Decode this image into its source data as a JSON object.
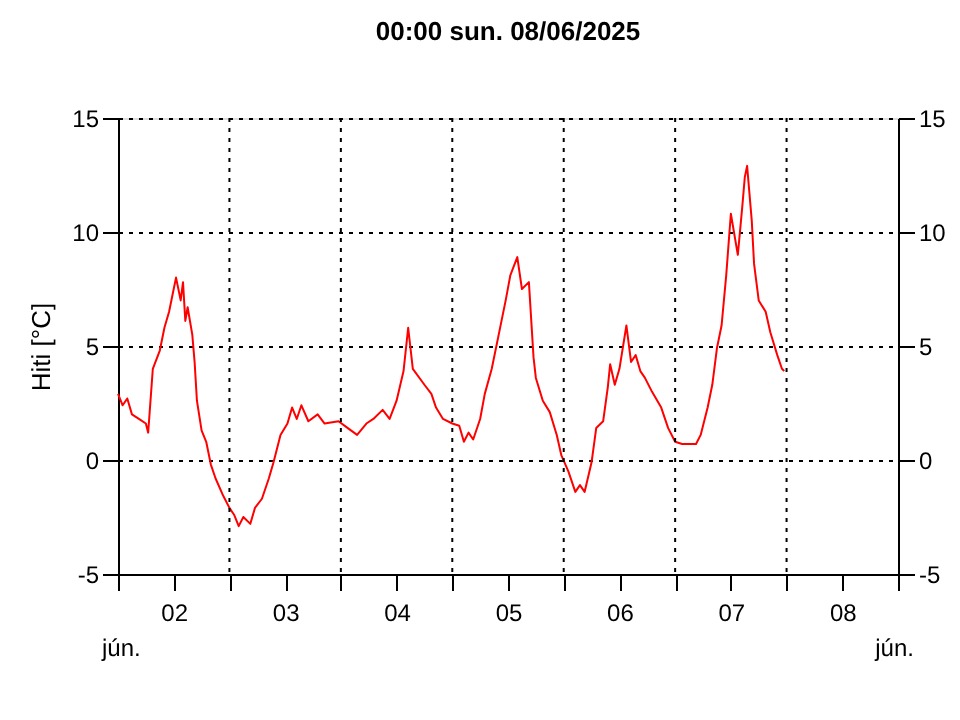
{
  "chart_data": {
    "type": "line",
    "title": "00:00   sun.  08/06/2025",
    "ylabel": "Hiti [°C]",
    "annotations": [
      "jún.",
      "jún."
    ],
    "x": [
      "2025-06-02T00:00",
      "2025-06-02T01:00",
      "2025-06-02T02:00",
      "2025-06-02T03:00",
      "2025-06-02T04:30",
      "2025-06-02T06:00",
      "2025-06-02T06:30",
      "2025-06-02T07:30",
      "2025-06-02T09:00",
      "2025-06-02T10:00",
      "2025-06-02T11:00",
      "2025-06-02T12:00",
      "2025-06-02T12:30",
      "2025-06-02T13:30",
      "2025-06-02T14:00",
      "2025-06-02T14:30",
      "2025-06-02T15:00",
      "2025-06-02T16:00",
      "2025-06-02T16:30",
      "2025-06-02T17:00",
      "2025-06-02T18:00",
      "2025-06-02T19:00",
      "2025-06-02T20:00",
      "2025-06-02T21:00",
      "2025-06-02T22:30",
      "2025-06-03T00:00",
      "2025-06-03T01:00",
      "2025-06-03T02:00",
      "2025-06-03T03:00",
      "2025-06-03T04:30",
      "2025-06-03T05:30",
      "2025-06-03T07:00",
      "2025-06-03T08:30",
      "2025-06-03T09:30",
      "2025-06-03T11:00",
      "2025-06-03T12:30",
      "2025-06-03T13:30",
      "2025-06-03T14:30",
      "2025-06-03T15:30",
      "2025-06-03T17:00",
      "2025-06-03T19:00",
      "2025-06-03T20:30",
      "2025-06-03T23:30",
      "2025-06-04T01:30",
      "2025-06-04T03:30",
      "2025-06-04T05:30",
      "2025-06-04T07:00",
      "2025-06-04T09:00",
      "2025-06-04T10:30",
      "2025-06-04T12:00",
      "2025-06-04T13:30",
      "2025-06-04T14:30",
      "2025-06-04T15:30",
      "2025-06-04T18:00",
      "2025-06-04T19:30",
      "2025-06-04T20:30",
      "2025-06-04T22:00",
      "2025-06-05T00:00",
      "2025-06-05T01:30",
      "2025-06-05T02:30",
      "2025-06-05T03:30",
      "2025-06-05T04:30",
      "2025-06-05T06:00",
      "2025-06-05T07:00",
      "2025-06-05T08:30",
      "2025-06-05T10:00",
      "2025-06-05T11:30",
      "2025-06-05T12:30",
      "2025-06-05T14:00",
      "2025-06-05T15:00",
      "2025-06-05T16:30",
      "2025-06-05T17:30",
      "2025-06-05T18:00",
      "2025-06-05T19:30",
      "2025-06-05T21:00",
      "2025-06-05T22:30",
      "2025-06-05T23:30",
      "2025-06-06T01:00",
      "2025-06-06T02:30",
      "2025-06-06T03:30",
      "2025-06-06T04:30",
      "2025-06-06T06:00",
      "2025-06-06T07:00",
      "2025-06-06T08:30",
      "2025-06-06T09:30",
      "2025-06-06T10:00",
      "2025-06-06T11:00",
      "2025-06-06T12:00",
      "2025-06-06T13:30",
      "2025-06-06T14:30",
      "2025-06-06T15:30",
      "2025-06-06T16:30",
      "2025-06-06T17:30",
      "2025-06-06T19:00",
      "2025-06-06T21:00",
      "2025-06-06T22:30",
      "2025-06-07T00:00",
      "2025-06-07T01:30",
      "2025-06-07T04:30",
      "2025-06-07T05:30",
      "2025-06-07T07:00",
      "2025-06-07T08:00",
      "2025-06-07T09:00",
      "2025-06-07T10:00",
      "2025-06-07T11:00",
      "2025-06-07T12:00",
      "2025-06-07T13:30",
      "2025-06-07T14:30",
      "2025-06-07T15:00",
      "2025-06-07T15:30",
      "2025-06-07T16:30",
      "2025-06-07T17:00",
      "2025-06-07T18:00",
      "2025-06-07T19:30",
      "2025-06-07T20:30",
      "2025-06-07T22:00",
      "2025-06-07T23:00",
      "2025-06-07T23:30"
    ],
    "series": [
      {
        "color": "#ff0000",
        "values": [
          2.9,
          2.4,
          2.7,
          2.0,
          1.8,
          1.6,
          1.2,
          4.0,
          4.8,
          5.8,
          6.5,
          7.5,
          8.0,
          7.0,
          7.8,
          6.1,
          6.7,
          5.5,
          4.3,
          2.6,
          1.3,
          0.8,
          -0.2,
          -0.8,
          -1.5,
          -2.1,
          -2.4,
          -2.9,
          -2.5,
          -2.8,
          -2.1,
          -1.7,
          -0.8,
          -0.1,
          1.1,
          1.6,
          2.3,
          1.8,
          2.4,
          1.7,
          2.0,
          1.6,
          1.7,
          1.4,
          1.1,
          1.6,
          1.8,
          2.2,
          1.8,
          2.6,
          3.9,
          5.8,
          4.0,
          3.3,
          2.9,
          2.3,
          1.8,
          1.6,
          1.5,
          0.8,
          1.2,
          0.9,
          1.8,
          2.9,
          4.0,
          5.5,
          7.0,
          8.1,
          8.9,
          7.5,
          7.8,
          4.5,
          3.6,
          2.6,
          2.1,
          1.1,
          0.2,
          -0.5,
          -1.4,
          -1.1,
          -1.4,
          -0.1,
          1.4,
          1.7,
          3.2,
          4.2,
          3.3,
          4.0,
          5.9,
          4.3,
          4.6,
          3.9,
          3.6,
          3.0,
          2.3,
          1.4,
          0.8,
          0.7,
          0.7,
          1.1,
          2.3,
          3.3,
          4.9,
          5.9,
          8.1,
          10.8,
          9.0,
          11.2,
          12.4,
          12.9,
          10.5,
          8.6,
          7.0,
          6.5,
          5.6,
          4.6,
          4.0,
          3.9
        ]
      }
    ],
    "xlim": [
      "2025-06-02T00:00",
      "2025-06-09T00:00"
    ],
    "xticks": [
      {
        "value": "2025-06-02T00:00",
        "label": null
      },
      {
        "value": "2025-06-02T12:00",
        "label": "02"
      },
      {
        "value": "2025-06-03T00:00",
        "label": null
      },
      {
        "value": "2025-06-03T12:00",
        "label": "03"
      },
      {
        "value": "2025-06-04T00:00",
        "label": null
      },
      {
        "value": "2025-06-04T12:00",
        "label": "04"
      },
      {
        "value": "2025-06-05T00:00",
        "label": null
      },
      {
        "value": "2025-06-05T12:00",
        "label": "05"
      },
      {
        "value": "2025-06-06T00:00",
        "label": null
      },
      {
        "value": "2025-06-06T12:00",
        "label": "06"
      },
      {
        "value": "2025-06-07T00:00",
        "label": null
      },
      {
        "value": "2025-06-07T12:00",
        "label": "07"
      },
      {
        "value": "2025-06-08T00:00",
        "label": null
      },
      {
        "value": "2025-06-08T12:00",
        "label": "08"
      },
      {
        "value": "2025-06-09T00:00",
        "label": null
      }
    ],
    "ylim": [
      -5,
      15
    ],
    "yticks": [
      -5,
      0,
      5,
      10,
      15
    ],
    "y2lim": [
      -5,
      15
    ],
    "y2ticks": [
      -5,
      0,
      5,
      10,
      15
    ],
    "grid": true,
    "marker": "none",
    "line_style": "solid"
  }
}
